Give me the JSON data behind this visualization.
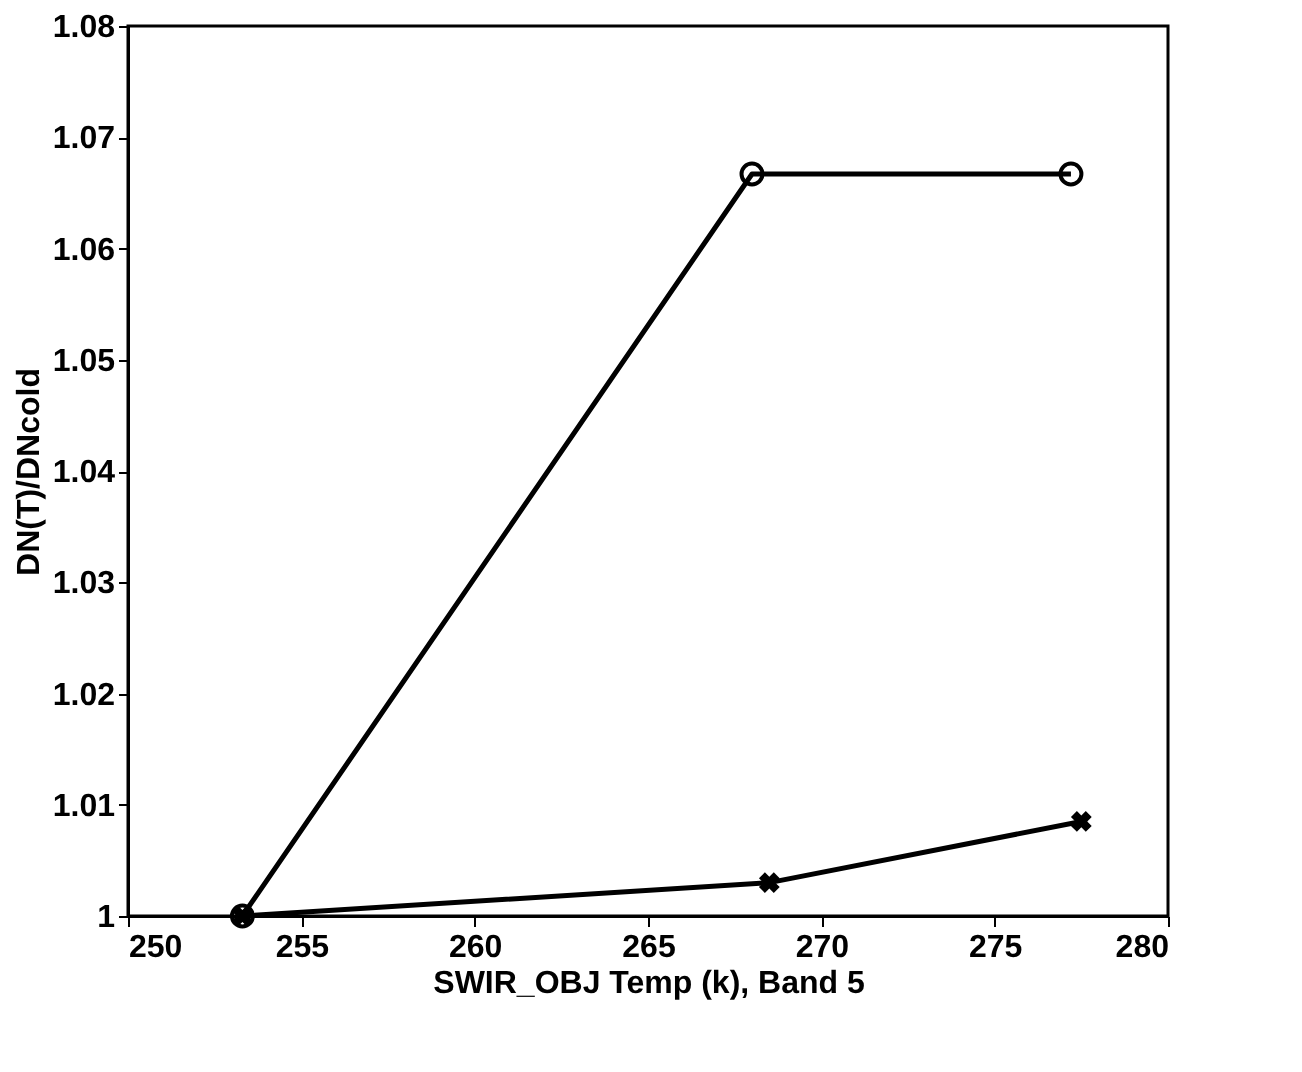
{
  "chart_data": {
    "type": "line",
    "xlabel": "SWIR_OBJ Temp (k), Band 5",
    "ylabel": "DN(T)/DNcold",
    "xlim": [
      250,
      280
    ],
    "xticks": [
      250,
      255,
      260,
      265,
      270,
      275,
      280
    ],
    "ylim": [
      1,
      1.08
    ],
    "yticks": [
      1,
      1.01,
      1.02,
      1.03,
      1.04,
      1.05,
      1.06,
      1.07,
      1.08
    ],
    "line_style": "solid",
    "series": [
      {
        "color": "#000000",
        "marker": "circle",
        "x": [
          253.3,
          268,
          277.2
        ],
        "values": [
          1.0,
          1.0667,
          1.0667
        ]
      },
      {
        "color": "#000000",
        "marker": "cross",
        "x": [
          253.3,
          268.5,
          277.5
        ],
        "values": [
          1.0,
          1.003,
          1.0085
        ]
      }
    ]
  }
}
